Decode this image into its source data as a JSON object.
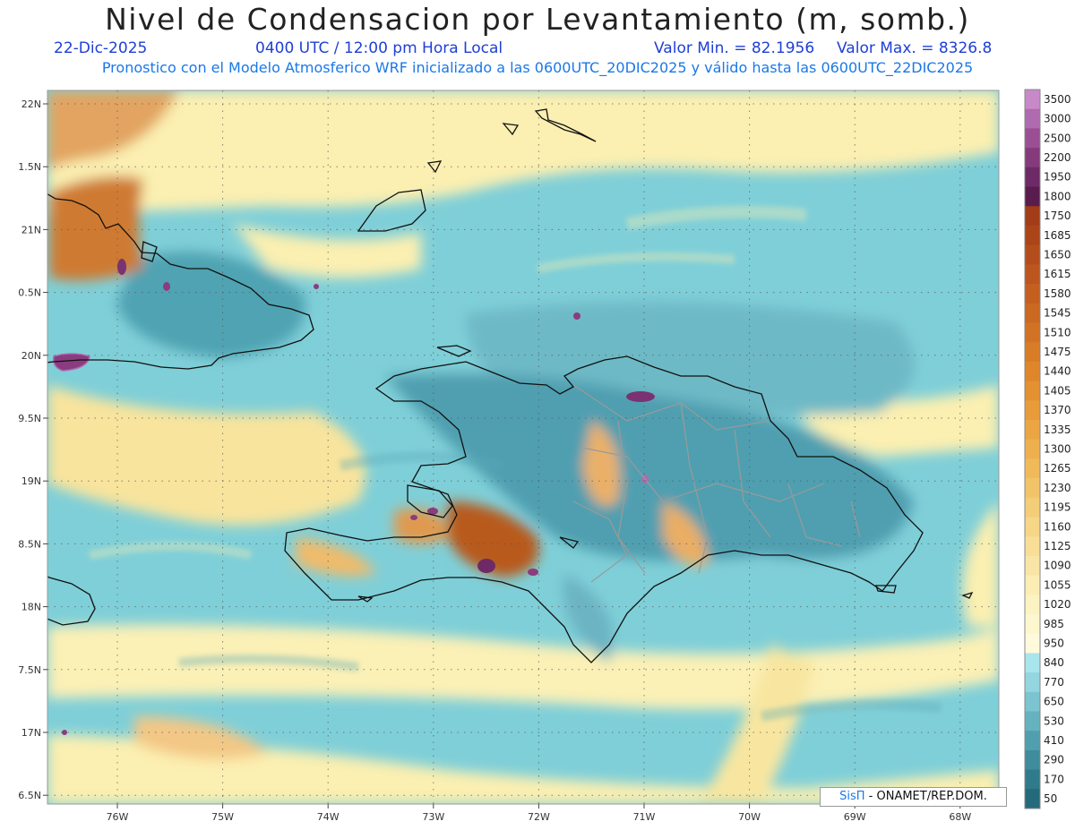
{
  "header": {
    "title": "Nivel de Condensacion por Levantamiento (m, somb.)",
    "date": "22-Dic-2025",
    "time": "0400 UTC / 12:00 pm Hora Local",
    "min_label": "Valor Min. = 82.1956",
    "max_label": "Valor Max. = 8326.8",
    "subtitle": "Pronostico con el Modelo Atmosferico WRF inicializado a las 0600UTC_20DIC2025 y válido hasta las  0600UTC_22DIC2025"
  },
  "axes": {
    "lat_labels": [
      "22N",
      "1.5N",
      "21N",
      "0.5N",
      "20N",
      "9.5N",
      "19N",
      "8.5N",
      "18N",
      "7.5N",
      "17N",
      "6.5N"
    ],
    "lon_labels": [
      "76W",
      "75W",
      "74W",
      "73W",
      "72W",
      "71W",
      "70W",
      "69W",
      "68W"
    ]
  },
  "colorbar": {
    "levels": [
      "3500",
      "3000",
      "2500",
      "2200",
      "1950",
      "1800",
      "1750",
      "1685",
      "1650",
      "1615",
      "1580",
      "1545",
      "1510",
      "1475",
      "1440",
      "1405",
      "1370",
      "1335",
      "1300",
      "1265",
      "1230",
      "1195",
      "1160",
      "1125",
      "1090",
      "1055",
      "1020",
      "985",
      "950",
      "840",
      "770",
      "650",
      "530",
      "410",
      "290",
      "170",
      "50"
    ],
    "colors": [
      "#c889c8",
      "#b06aaf",
      "#9a4e93",
      "#853a7c",
      "#6e2a66",
      "#5a1c4e",
      "#a33c18",
      "#ac4419",
      "#b44d1c",
      "#bc561e",
      "#c45f20",
      "#cb6822",
      "#d27224",
      "#d97c27",
      "#df862b",
      "#e49131",
      "#e89b39",
      "#eba643",
      "#eeb04f",
      "#f0ba5b",
      "#f2c469",
      "#f4cd78",
      "#f6d687",
      "#f8de97",
      "#f9e6a6",
      "#fbedb4",
      "#fcf3c2",
      "#fdf7cf",
      "#fefadb",
      "#a9e6ec",
      "#93d6df",
      "#7cc4cf",
      "#66b2bf",
      "#519fae",
      "#3f8c9c",
      "#2f7a8b",
      "#246a7b"
    ]
  },
  "credit": {
    "sis": "SisΠ",
    "rest": "- ONAMET/REP.DOM."
  }
}
